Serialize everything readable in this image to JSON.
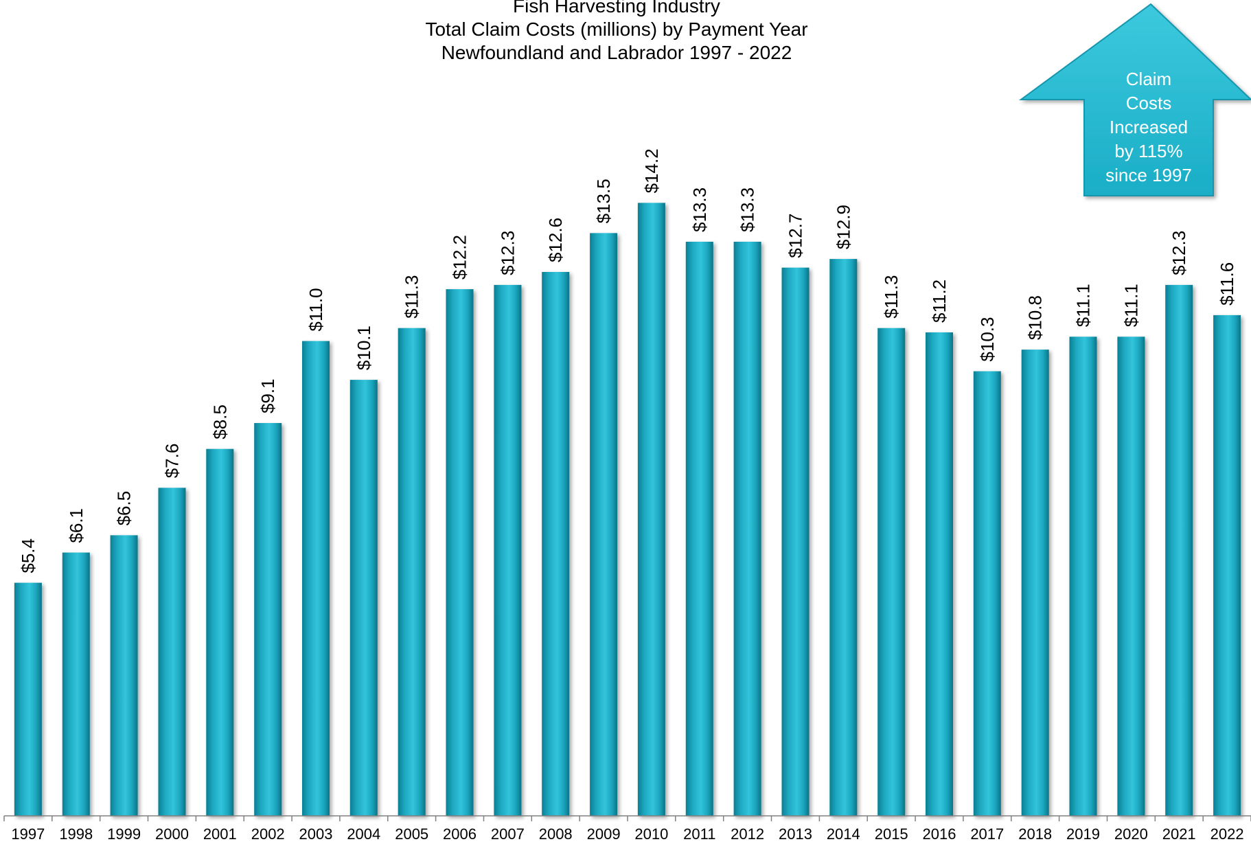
{
  "chart_data": {
    "type": "bar",
    "title_lines": [
      "Fish Harvesting Industry",
      "Total Claim Costs (millions) by Payment Year",
      "Newfoundland and Labrador  1997 - 2022"
    ],
    "categories": [
      "1997",
      "1998",
      "1999",
      "2000",
      "2001",
      "2002",
      "2003",
      "2004",
      "2005",
      "2006",
      "2007",
      "2008",
      "2009",
      "2010",
      "2011",
      "2012",
      "2013",
      "2014",
      "2015",
      "2016",
      "2017",
      "2018",
      "2019",
      "2020",
      "2021",
      "2022"
    ],
    "values": [
      5.4,
      6.1,
      6.5,
      7.6,
      8.5,
      9.1,
      11.0,
      10.1,
      11.3,
      12.2,
      12.3,
      12.6,
      13.5,
      14.2,
      13.3,
      13.3,
      12.7,
      12.9,
      11.3,
      11.2,
      10.3,
      10.8,
      11.1,
      11.1,
      12.3,
      11.6
    ],
    "data_labels": [
      "$5.4",
      "$6.1",
      "$6.5",
      "$7.6",
      "$8.5",
      "$9.1",
      "$11.0",
      "$10.1",
      "$11.3",
      "$12.2",
      "$12.3",
      "$12.6",
      "$13.5",
      "$14.2",
      "$13.3",
      "$13.3",
      "$12.7",
      "$12.9",
      "$11.3",
      "$11.2",
      "$10.3",
      "$10.8",
      "$11.1",
      "$11.1",
      "$12.3",
      "$11.6"
    ],
    "ylim": [
      0,
      18.9
    ],
    "grid": false,
    "bar_color": "#1aa5bd",
    "callout": {
      "lines": [
        "Claim",
        "Costs",
        "Increased",
        "by 115%",
        "since 1997"
      ],
      "color": "#21b8d0",
      "shape": "up-arrow",
      "placement": "top-right"
    }
  }
}
